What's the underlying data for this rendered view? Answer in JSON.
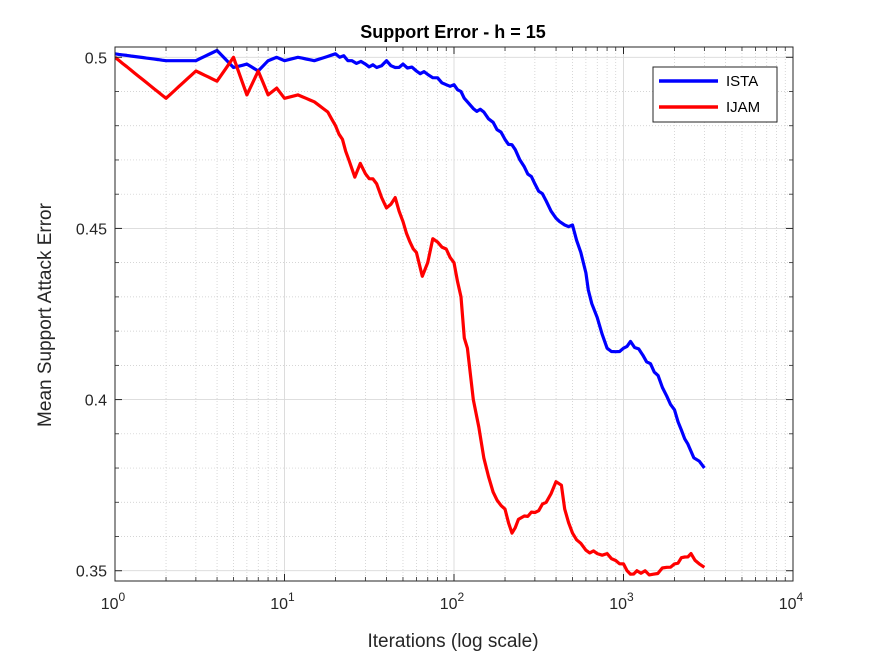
{
  "chart_data": {
    "type": "line",
    "title": "Support Error - h = 15",
    "xlabel": "Iterations (log scale)",
    "ylabel": "Mean Support Attack Error",
    "xscale": "log",
    "xlim": [
      1,
      10000
    ],
    "ylim": [
      0.347,
      0.503
    ],
    "x_ticks": [
      1,
      10,
      100,
      1000,
      10000
    ],
    "x_tick_labels": [
      {
        "base": "10",
        "exp": "0"
      },
      {
        "base": "10",
        "exp": "1"
      },
      {
        "base": "10",
        "exp": "2"
      },
      {
        "base": "10",
        "exp": "3"
      },
      {
        "base": "10",
        "exp": "4"
      }
    ],
    "y_ticks": [
      0.35,
      0.4,
      0.45,
      0.5
    ],
    "y_tick_labels": [
      "0.35",
      "0.4",
      "0.45",
      "0.5"
    ],
    "grid": true,
    "minor_grid": true,
    "legend_position": "top-right",
    "series": [
      {
        "name": "ISTA",
        "color": "#0000ff",
        "x": [
          1,
          2,
          3,
          4,
          5,
          6,
          7,
          8,
          9,
          10,
          12,
          15,
          20,
          25,
          30,
          35,
          40,
          45,
          50,
          60,
          70,
          80,
          90,
          100,
          110,
          120,
          130,
          150,
          170,
          200,
          230,
          260,
          300,
          350,
          400,
          420,
          450,
          500,
          560,
          600,
          620,
          650,
          700,
          800,
          900,
          1000,
          1100,
          1300,
          1600,
          1800,
          2000,
          2200,
          2400,
          2600,
          2800,
          3000
        ],
        "values": [
          0.501,
          0.499,
          0.499,
          0.502,
          0.497,
          0.498,
          0.496,
          0.499,
          0.5,
          0.499,
          0.5,
          0.499,
          0.501,
          0.499,
          0.498,
          0.497,
          0.499,
          0.497,
          0.498,
          0.496,
          0.495,
          0.494,
          0.492,
          0.492,
          0.49,
          0.487,
          0.485,
          0.484,
          0.481,
          0.476,
          0.473,
          0.468,
          0.463,
          0.458,
          0.453,
          0.452,
          0.451,
          0.451,
          0.443,
          0.437,
          0.432,
          0.428,
          0.424,
          0.415,
          0.414,
          0.415,
          0.417,
          0.413,
          0.407,
          0.401,
          0.397,
          0.391,
          0.387,
          0.383,
          0.382,
          0.38
        ]
      },
      {
        "name": "IJAM",
        "color": "#ff0000",
        "x": [
          1,
          2,
          3,
          4,
          5,
          6,
          7,
          8,
          9,
          10,
          12,
          15,
          18,
          20,
          22,
          24,
          26,
          28,
          30,
          35,
          40,
          45,
          50,
          55,
          60,
          65,
          70,
          75,
          80,
          90,
          100,
          110,
          115,
          120,
          130,
          140,
          150,
          170,
          190,
          200,
          220,
          240,
          260,
          300,
          350,
          400,
          430,
          450,
          500,
          560,
          600,
          700,
          800,
          900,
          1000,
          1100,
          1200,
          1500,
          1800,
          2000,
          2300,
          2500,
          2800,
          3000
        ],
        "values": [
          0.5,
          0.488,
          0.496,
          0.493,
          0.5,
          0.489,
          0.496,
          0.489,
          0.491,
          0.488,
          0.489,
          0.487,
          0.484,
          0.48,
          0.476,
          0.47,
          0.465,
          0.469,
          0.466,
          0.463,
          0.456,
          0.459,
          0.452,
          0.446,
          0.443,
          0.436,
          0.44,
          0.447,
          0.446,
          0.444,
          0.44,
          0.43,
          0.418,
          0.415,
          0.4,
          0.392,
          0.383,
          0.373,
          0.369,
          0.368,
          0.361,
          0.365,
          0.366,
          0.367,
          0.37,
          0.376,
          0.375,
          0.368,
          0.361,
          0.358,
          0.356,
          0.355,
          0.355,
          0.353,
          0.352,
          0.349,
          0.35,
          0.349,
          0.351,
          0.352,
          0.354,
          0.355,
          0.352,
          0.351
        ]
      }
    ]
  }
}
